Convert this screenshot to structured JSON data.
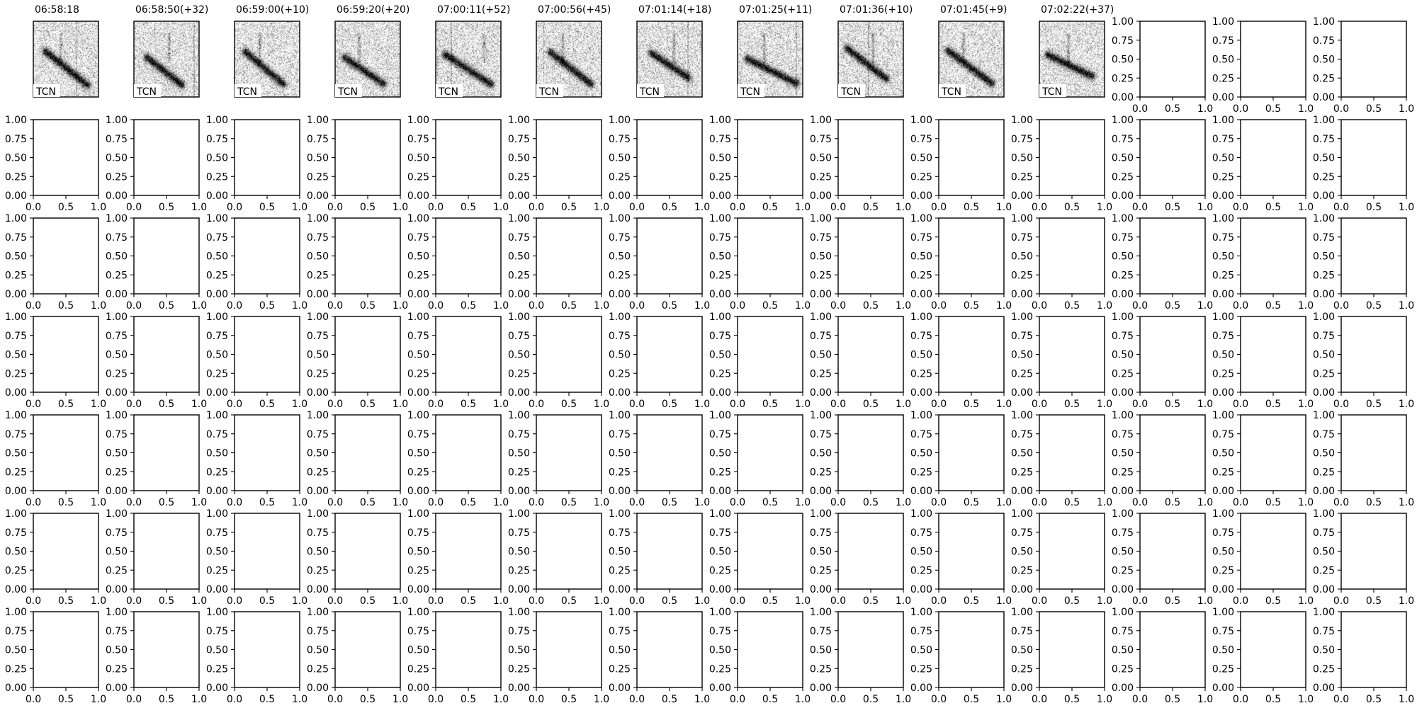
{
  "chart_data": {
    "type": "image-grid",
    "grid": {
      "rows": 7,
      "cols": 14
    },
    "colormap": "gray_r",
    "spectrogram_panels": [
      {
        "title": "06:58:18",
        "label": "TCN"
      },
      {
        "title": "06:58:50(+32)",
        "label": "TCN"
      },
      {
        "title": "06:59:00(+10)",
        "label": "TCN"
      },
      {
        "title": "06:59:20(+20)",
        "label": "TCN"
      },
      {
        "title": "07:00:11(+52)",
        "label": "TCN"
      },
      {
        "title": "07:00:56(+45)",
        "label": "TCN"
      },
      {
        "title": "07:01:14(+18)",
        "label": "TCN"
      },
      {
        "title": "07:01:25(+11)",
        "label": "TCN"
      },
      {
        "title": "07:01:36(+10)",
        "label": "TCN"
      },
      {
        "title": "07:01:45(+9)",
        "label": "TCN"
      },
      {
        "title": "07:02:22(+37)",
        "label": "TCN"
      }
    ],
    "empty_axes": {
      "xlim": [
        0,
        1
      ],
      "ylim": [
        0,
        1
      ],
      "xticks": [
        "0.0",
        "0.5",
        "1.0"
      ],
      "yticks": [
        "0.00",
        "0.25",
        "0.50",
        "0.75",
        "1.00"
      ],
      "grid": false
    }
  }
}
